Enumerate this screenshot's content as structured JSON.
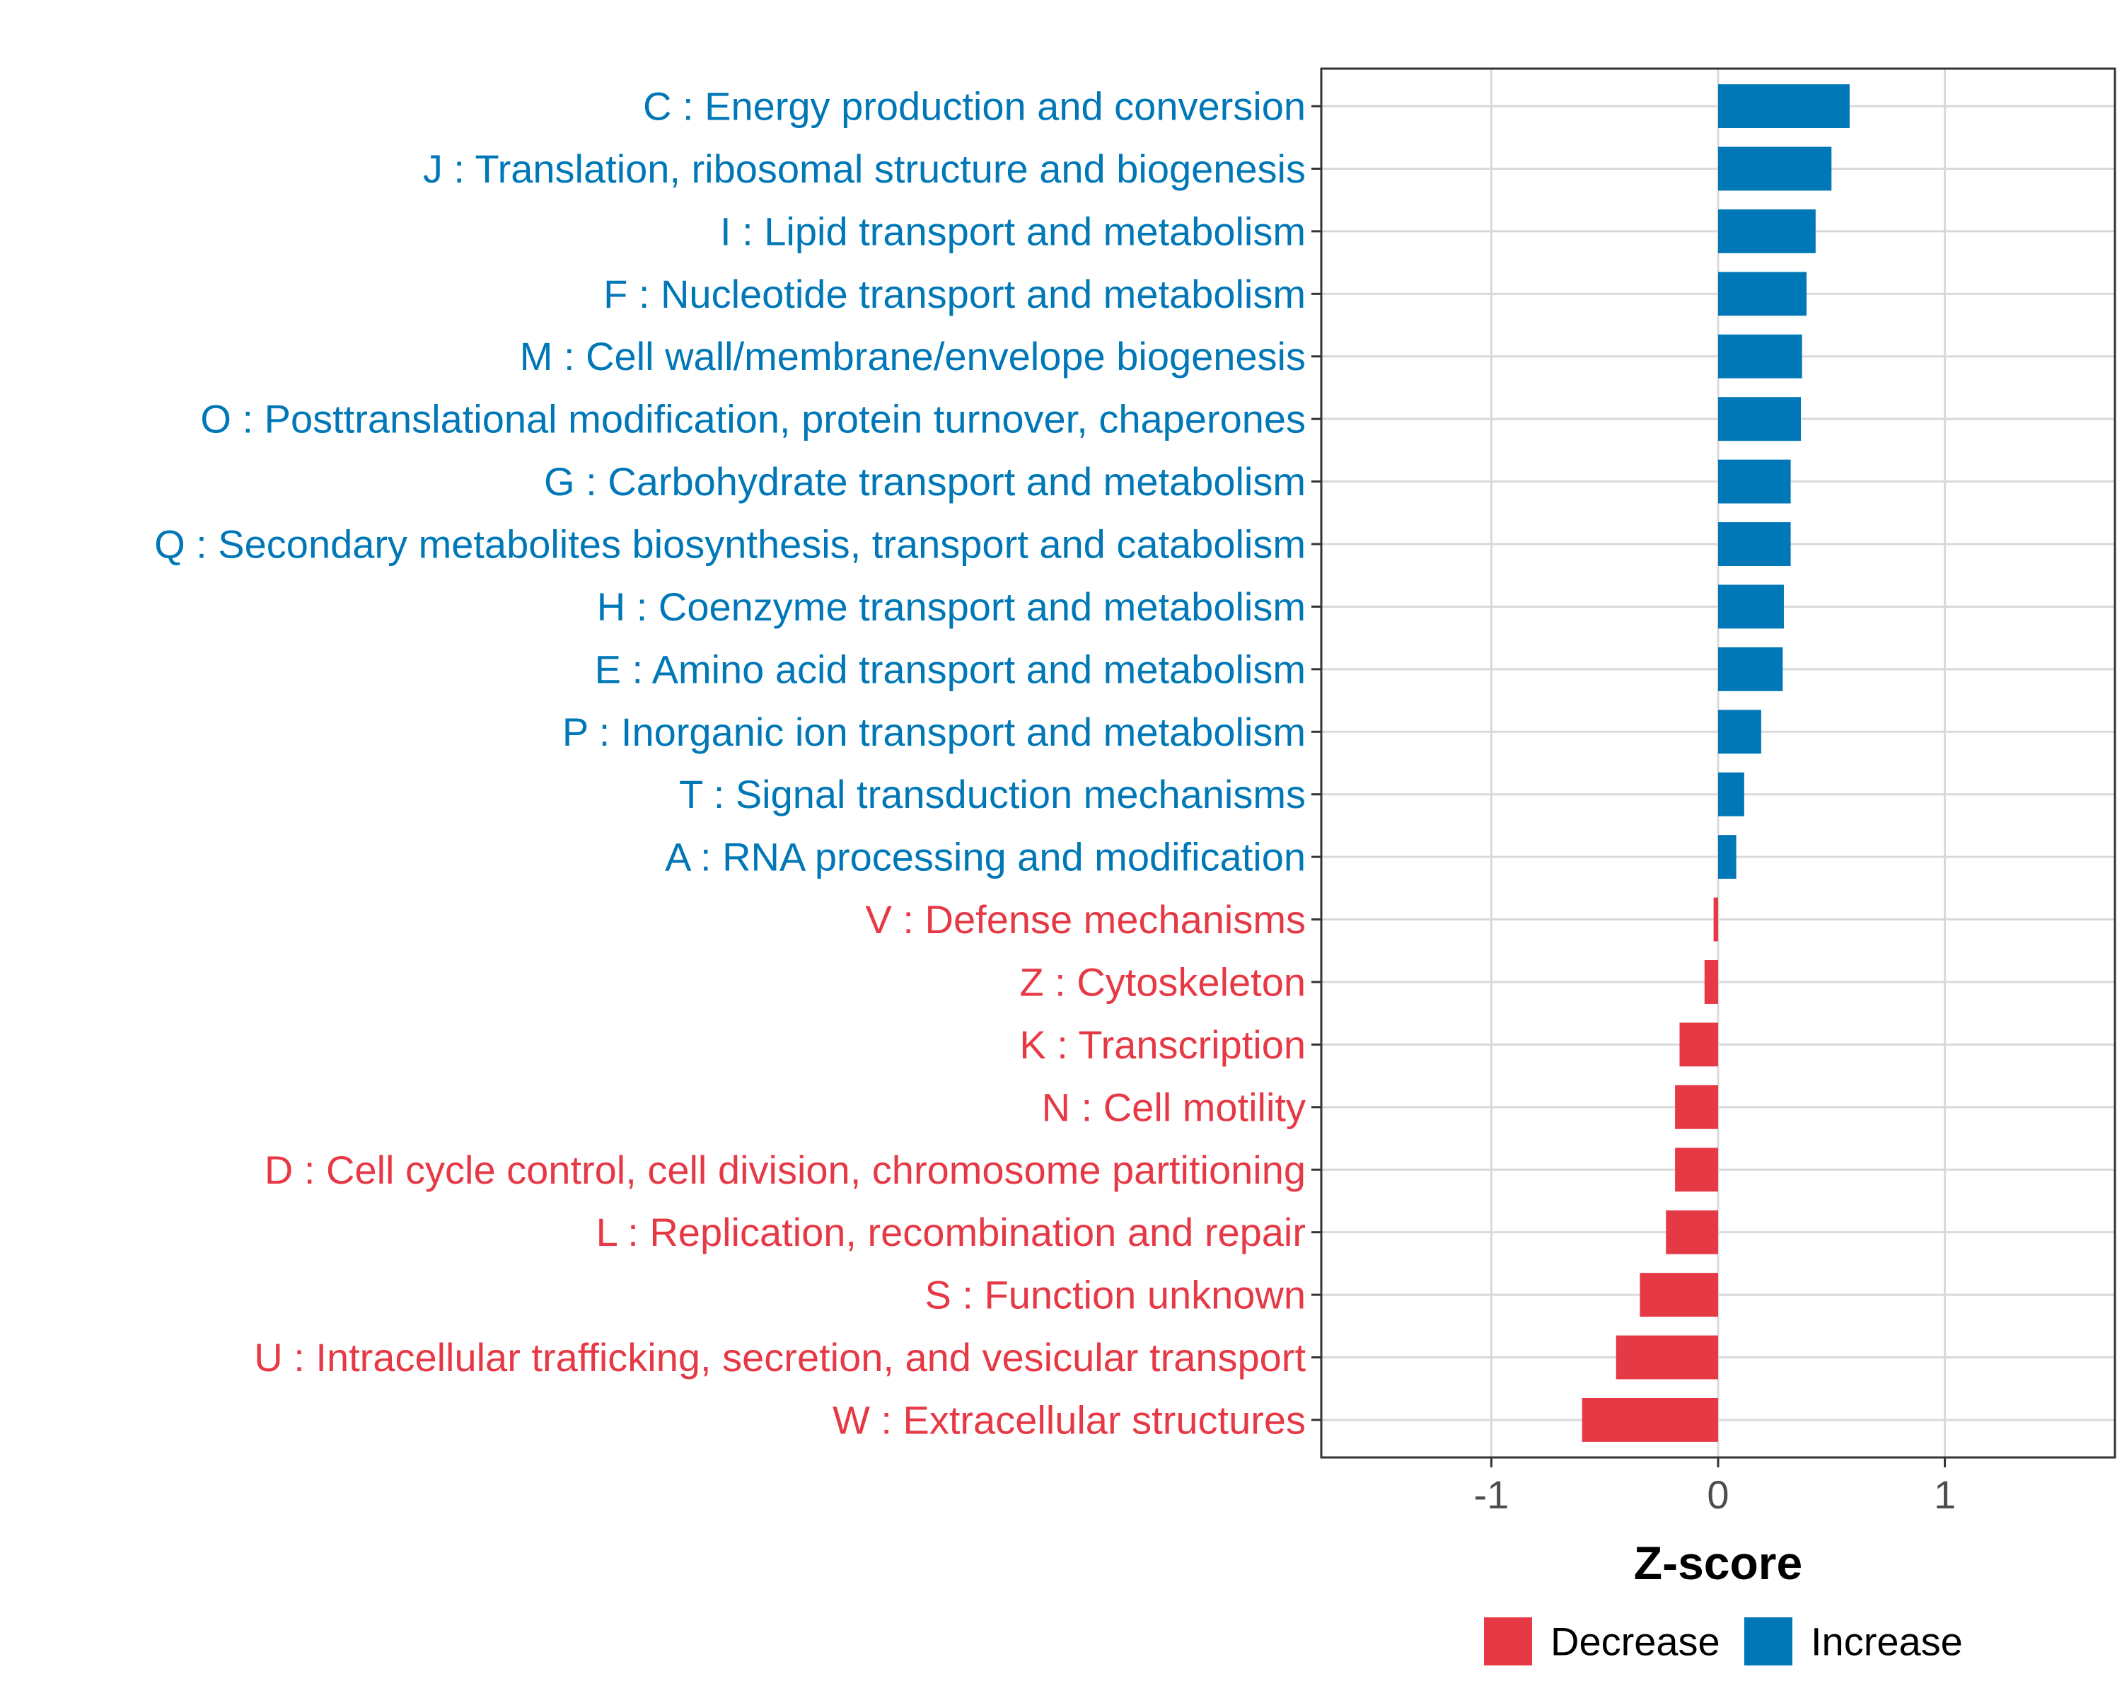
{
  "chart_data": {
    "type": "bar",
    "orientation": "horizontal",
    "categories": [
      "C : Energy production and conversion",
      "J : Translation, ribosomal structure and biogenesis",
      "I : Lipid transport and metabolism",
      "F : Nucleotide transport and metabolism",
      "M : Cell wall/membrane/envelope biogenesis",
      "O : Posttranslational modification, protein turnover, chaperones",
      "G : Carbohydrate transport and metabolism",
      "Q : Secondary metabolites biosynthesis, transport and catabolism",
      "H : Coenzyme transport and metabolism",
      "E : Amino acid transport and metabolism",
      "P : Inorganic ion transport and metabolism",
      "T : Signal transduction mechanisms",
      "A : RNA processing and modification",
      "V : Defense mechanisms",
      "Z : Cytoskeleton",
      "K : Transcription",
      "N : Cell motility",
      "D : Cell cycle control, cell division, chromosome partitioning",
      "L : Replication, recombination and repair",
      "S : Function unknown",
      "U : Intracellular trafficking, secretion, and vesicular transport",
      "W : Extracellular structures"
    ],
    "values": [
      0.58,
      0.5,
      0.43,
      0.39,
      0.37,
      0.365,
      0.32,
      0.32,
      0.29,
      0.285,
      0.19,
      0.115,
      0.08,
      -0.02,
      -0.06,
      -0.17,
      -0.19,
      -0.19,
      -0.23,
      -0.345,
      -0.45,
      -0.6
    ],
    "groups": [
      "Increase",
      "Increase",
      "Increase",
      "Increase",
      "Increase",
      "Increase",
      "Increase",
      "Increase",
      "Increase",
      "Increase",
      "Increase",
      "Increase",
      "Increase",
      "Decrease",
      "Decrease",
      "Decrease",
      "Decrease",
      "Decrease",
      "Decrease",
      "Decrease",
      "Decrease",
      "Decrease"
    ],
    "xlabel": "Z-score",
    "ylabel": "",
    "xlim": [
      -1.75,
      1.75
    ],
    "xticks": [
      -1,
      0,
      1
    ],
    "xtick_labels": [
      "-1",
      "0",
      "1"
    ],
    "grid": true,
    "legend": {
      "position": "bottom",
      "entries": [
        {
          "name": "Decrease",
          "color": "#E63946"
        },
        {
          "name": "Increase",
          "color": "#0077B6"
        }
      ]
    }
  },
  "colors": {
    "increase": "#0077B6",
    "decrease": "#E63946",
    "grid": "#d9d9d9",
    "axis": "#333333"
  }
}
